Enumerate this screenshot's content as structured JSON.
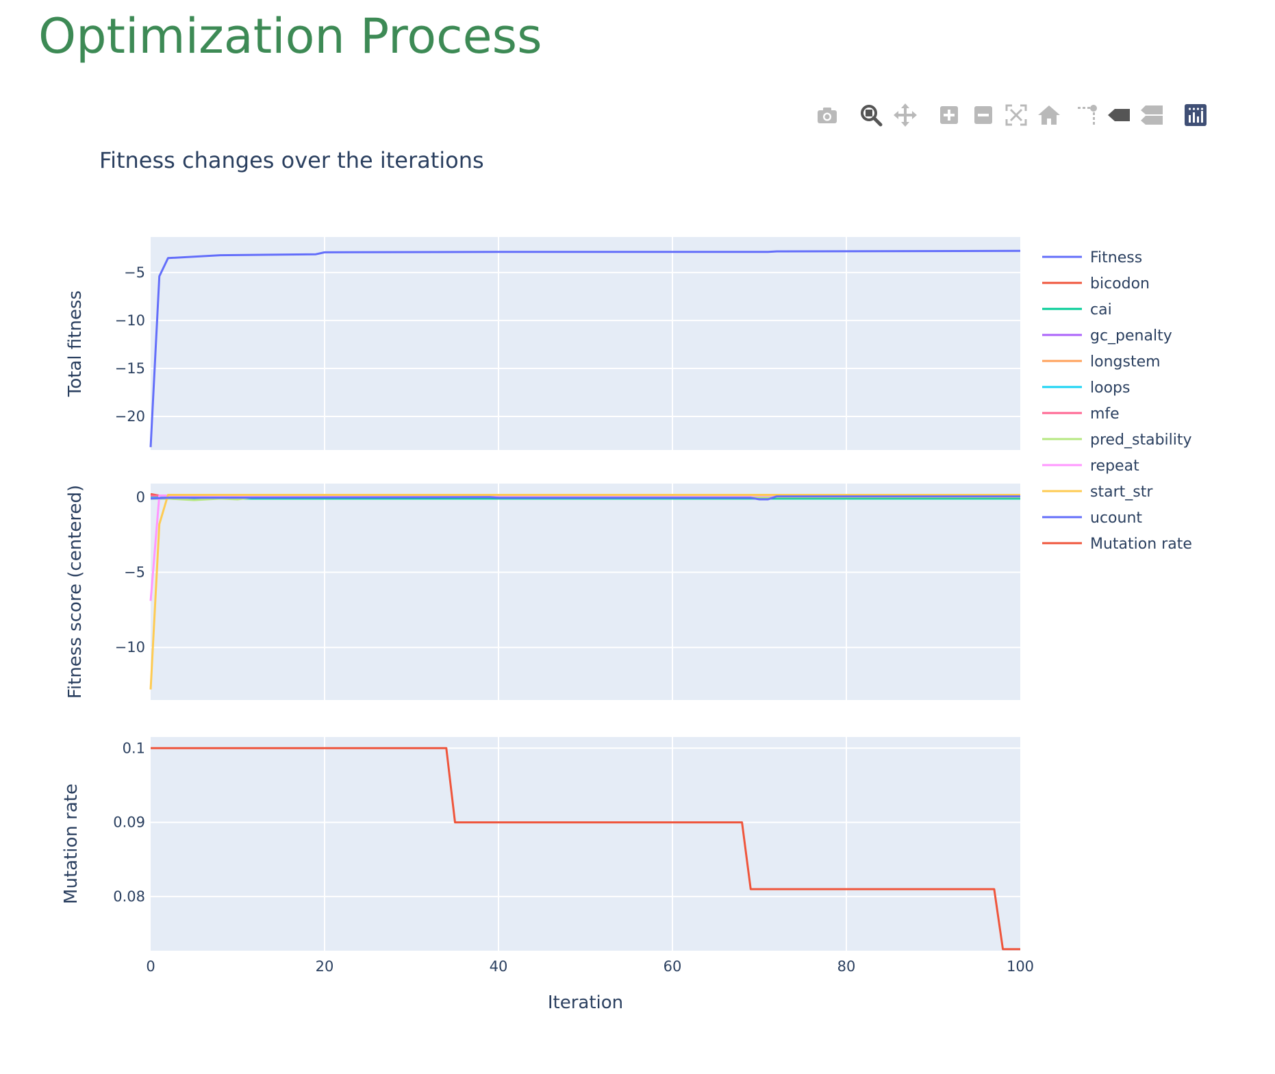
{
  "page": {
    "title": "Optimization Process"
  },
  "modebar": [
    {
      "name": "camera-icon",
      "label": "Download plot as a png"
    },
    {
      "name": "zoom-icon",
      "label": "Zoom"
    },
    {
      "name": "pan-icon",
      "label": "Pan"
    },
    {
      "name": "zoom-in-icon",
      "label": "Zoom in"
    },
    {
      "name": "zoom-out-icon",
      "label": "Zoom out"
    },
    {
      "name": "autoscale-icon",
      "label": "Autoscale"
    },
    {
      "name": "home-icon",
      "label": "Reset axes"
    },
    {
      "name": "spike-lines-icon",
      "label": "Toggle Spike Lines"
    },
    {
      "name": "hover-closest-icon",
      "label": "Show closest data on hover"
    },
    {
      "name": "hover-compare-icon",
      "label": "Compare data on hover"
    },
    {
      "name": "plotly-logo-icon",
      "label": "Produced with Plotly"
    }
  ],
  "chart_data": {
    "type": "line",
    "title": "Fitness changes over the iterations",
    "xlabel": "Iteration",
    "xlim": [
      0,
      100
    ],
    "xticks": [
      0,
      20,
      40,
      60,
      80,
      100
    ],
    "grid": true,
    "legend_position": "right",
    "panels": [
      {
        "ylabel": "Total fitness",
        "ylim": [
          -23.5,
          -1.3
        ],
        "yticks": [
          -20,
          -15,
          -10,
          -5
        ],
        "ytick_labels": [
          "−20",
          "−15",
          "−10",
          "−5"
        ],
        "series": [
          {
            "name": "Fitness",
            "color": "#636efa",
            "points": [
              [
                0,
                -23.2
              ],
              [
                1,
                -5.4
              ],
              [
                2,
                -3.5
              ],
              [
                8,
                -3.2
              ],
              [
                19,
                -3.1
              ],
              [
                20,
                -2.9
              ],
              [
                40,
                -2.85
              ],
              [
                71,
                -2.85
              ],
              [
                72,
                -2.8
              ],
              [
                100,
                -2.75
              ]
            ]
          }
        ]
      },
      {
        "ylabel": "Fitness score (centered)",
        "ylim": [
          -13.5,
          0.9
        ],
        "yticks": [
          -10,
          -5,
          0
        ],
        "ytick_labels": [
          "−10",
          "−5",
          "0"
        ],
        "series": [
          {
            "name": "bicodon",
            "color": "#EF553B",
            "points": [
              [
                0,
                0.2
              ],
              [
                1,
                0.1
              ],
              [
                2,
                0.0
              ],
              [
                100,
                0.0
              ]
            ]
          },
          {
            "name": "cai",
            "color": "#00cc96",
            "points": [
              [
                0,
                -0.1
              ],
              [
                100,
                -0.1
              ]
            ]
          },
          {
            "name": "gc_penalty",
            "color": "#ab63fa",
            "points": [
              [
                0,
                0.05
              ],
              [
                100,
                0.05
              ]
            ]
          },
          {
            "name": "longstem",
            "color": "#FFA15A",
            "points": [
              [
                0,
                0.0
              ],
              [
                100,
                0.0
              ]
            ]
          },
          {
            "name": "loops",
            "color": "#19d3f3",
            "points": [
              [
                0,
                0.0
              ],
              [
                100,
                0.0
              ]
            ]
          },
          {
            "name": "mfe",
            "color": "#FF6692",
            "points": [
              [
                0,
                0.1
              ],
              [
                100,
                0.1
              ]
            ]
          },
          {
            "name": "pred_stability",
            "color": "#B6E880",
            "points": [
              [
                0,
                -0.1
              ],
              [
                2,
                -0.1
              ],
              [
                5,
                -0.2
              ],
              [
                8,
                -0.1
              ],
              [
                10,
                -0.15
              ],
              [
                12,
                0.0
              ],
              [
                100,
                0.0
              ]
            ]
          },
          {
            "name": "repeat",
            "color": "#FF97FF",
            "points": [
              [
                0,
                -6.9
              ],
              [
                1,
                0.1
              ],
              [
                2,
                0.1
              ],
              [
                100,
                0.1
              ]
            ]
          },
          {
            "name": "start_str",
            "color": "#FECB52",
            "points": [
              [
                0,
                -12.8
              ],
              [
                1,
                -1.8
              ],
              [
                2,
                0.15
              ],
              [
                100,
                0.15
              ]
            ]
          },
          {
            "name": "ucount",
            "color": "#636efa",
            "points": [
              [
                0,
                -0.1
              ],
              [
                2,
                -0.05
              ],
              [
                39,
                0.0
              ],
              [
                40,
                -0.05
              ],
              [
                69,
                -0.05
              ],
              [
                70,
                -0.15
              ],
              [
                71,
                -0.15
              ],
              [
                72,
                0.05
              ],
              [
                100,
                0.05
              ]
            ]
          }
        ]
      },
      {
        "ylabel": "Mutation rate",
        "ylim": [
          0.0727,
          0.1015
        ],
        "yticks": [
          0.08,
          0.09,
          0.1
        ],
        "ytick_labels": [
          "0.08",
          "0.09",
          "0.1"
        ],
        "series": [
          {
            "name": "Mutation rate",
            "color": "#EF553B",
            "points": [
              [
                0,
                0.1
              ],
              [
                34,
                0.1
              ],
              [
                35,
                0.09
              ],
              [
                68,
                0.09
              ],
              [
                69,
                0.081
              ],
              [
                97,
                0.081
              ],
              [
                98,
                0.0729
              ],
              [
                100,
                0.0729
              ]
            ]
          }
        ]
      }
    ],
    "legend": [
      {
        "name": "Fitness",
        "color": "#636efa"
      },
      {
        "name": "bicodon",
        "color": "#EF553B"
      },
      {
        "name": "cai",
        "color": "#00cc96"
      },
      {
        "name": "gc_penalty",
        "color": "#ab63fa"
      },
      {
        "name": "longstem",
        "color": "#FFA15A"
      },
      {
        "name": "loops",
        "color": "#19d3f3"
      },
      {
        "name": "mfe",
        "color": "#FF6692"
      },
      {
        "name": "pred_stability",
        "color": "#B6E880"
      },
      {
        "name": "repeat",
        "color": "#FF97FF"
      },
      {
        "name": "start_str",
        "color": "#FECB52"
      },
      {
        "name": "ucount",
        "color": "#636efa"
      },
      {
        "name": "Mutation rate",
        "color": "#EF553B"
      }
    ]
  }
}
